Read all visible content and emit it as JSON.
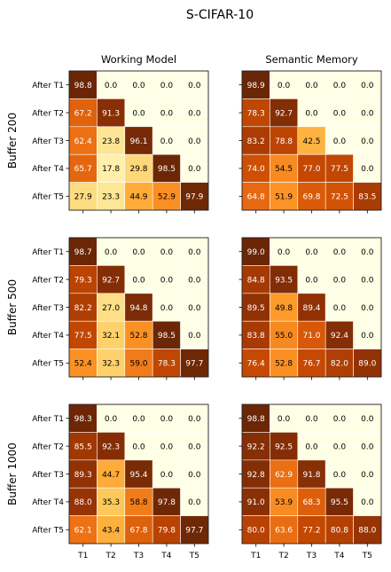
{
  "chart_data": {
    "type": "heatmap",
    "title": "S-CIFAR-10",
    "column_titles": [
      "Working Model",
      "Semantic Memory"
    ],
    "row_titles": [
      "Buffer 200",
      "Buffer 500",
      "Buffer 1000"
    ],
    "row_labels": [
      "After T1",
      "After T2",
      "After T3",
      "After T4",
      "After T5"
    ],
    "col_labels": [
      "T1",
      "T2",
      "T3",
      "T4",
      "T5"
    ],
    "colormap": "YlOrBr",
    "vmin": 0,
    "vmax": 100,
    "panels": [
      {
        "buffer": "Buffer 200",
        "model": "Working Model",
        "values": [
          [
            98.8,
            0.0,
            0.0,
            0.0,
            0.0
          ],
          [
            67.2,
            91.3,
            0.0,
            0.0,
            0.0
          ],
          [
            62.4,
            23.8,
            96.1,
            0.0,
            0.0
          ],
          [
            65.7,
            17.8,
            29.8,
            98.5,
            0.0
          ],
          [
            27.9,
            23.3,
            44.9,
            52.9,
            97.9
          ]
        ]
      },
      {
        "buffer": "Buffer 200",
        "model": "Semantic Memory",
        "values": [
          [
            98.9,
            0.0,
            0.0,
            0.0,
            0.0
          ],
          [
            78.3,
            92.7,
            0.0,
            0.0,
            0.0
          ],
          [
            83.2,
            78.8,
            42.5,
            0.0,
            0.0
          ],
          [
            74.0,
            54.5,
            77.0,
            77.5,
            0.0
          ],
          [
            64.8,
            51.9,
            69.8,
            72.5,
            83.5
          ]
        ]
      },
      {
        "buffer": "Buffer 500",
        "model": "Working Model",
        "values": [
          [
            98.7,
            0.0,
            0.0,
            0.0,
            0.0
          ],
          [
            79.3,
            92.7,
            0.0,
            0.0,
            0.0
          ],
          [
            82.2,
            27.0,
            94.8,
            0.0,
            0.0
          ],
          [
            77.5,
            32.1,
            52.8,
            98.5,
            0.0
          ],
          [
            52.4,
            32.3,
            59.0,
            78.3,
            97.7
          ]
        ]
      },
      {
        "buffer": "Buffer 500",
        "model": "Semantic Memory",
        "values": [
          [
            99.0,
            0.0,
            0.0,
            0.0,
            0.0
          ],
          [
            84.8,
            93.5,
            0.0,
            0.0,
            0.0
          ],
          [
            89.5,
            49.8,
            89.4,
            0.0,
            0.0
          ],
          [
            83.8,
            55.0,
            71.0,
            92.4,
            0.0
          ],
          [
            76.4,
            52.8,
            76.7,
            82.0,
            89.0
          ]
        ]
      },
      {
        "buffer": "Buffer 1000",
        "model": "Working Model",
        "values": [
          [
            98.3,
            0.0,
            0.0,
            0.0,
            0.0
          ],
          [
            85.5,
            92.3,
            0.0,
            0.0,
            0.0
          ],
          [
            89.3,
            44.7,
            95.4,
            0.0,
            0.0
          ],
          [
            88.0,
            35.3,
            58.8,
            97.8,
            0.0
          ],
          [
            62.1,
            43.4,
            67.8,
            79.8,
            97.7
          ]
        ]
      },
      {
        "buffer": "Buffer 1000",
        "model": "Semantic Memory",
        "values": [
          [
            98.8,
            0.0,
            0.0,
            0.0,
            0.0
          ],
          [
            92.2,
            92.5,
            0.0,
            0.0,
            0.0
          ],
          [
            92.8,
            62.9,
            91.8,
            0.0,
            0.0
          ],
          [
            91.0,
            53.9,
            68.3,
            95.5,
            0.0
          ],
          [
            80.0,
            63.6,
            77.2,
            80.8,
            88.0
          ]
        ]
      }
    ]
  }
}
